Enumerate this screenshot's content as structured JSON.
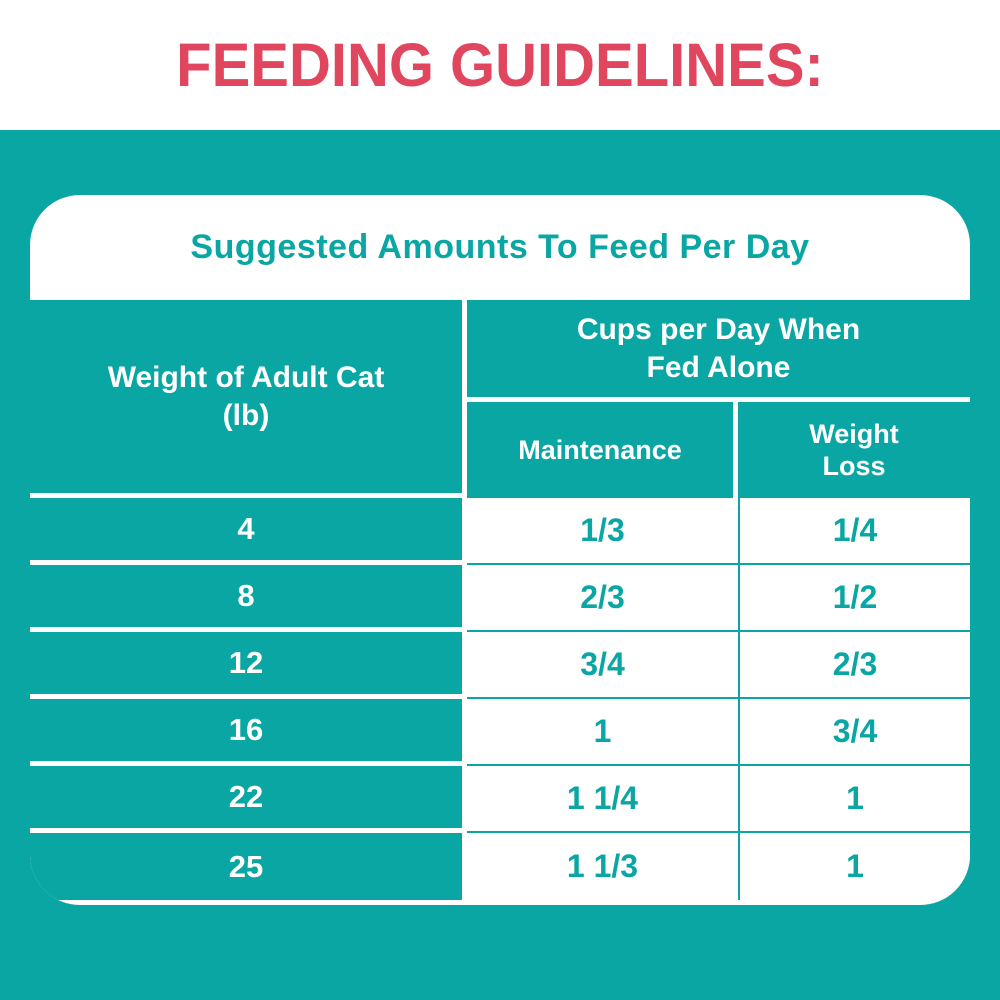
{
  "heading": {
    "text": "FEEDING GUIDELINES:"
  },
  "card": {
    "title": "Suggested Amounts To Feed Per Day",
    "table": {
      "weight_header": {
        "line1": "Weight of Adult Cat",
        "line2": "(lb)"
      },
      "cups_header": {
        "line1": "Cups per Day When",
        "line2": "Fed Alone"
      },
      "maintenance_header": "Maintenance",
      "weight_loss_header": {
        "line1": "Weight",
        "line2": "Loss"
      },
      "rows": [
        {
          "weight": "4",
          "maintenance": "1/3",
          "weight_loss": "1/4"
        },
        {
          "weight": "8",
          "maintenance": "2/3",
          "weight_loss": "1/2"
        },
        {
          "weight": "12",
          "maintenance": "3/4",
          "weight_loss": "2/3"
        },
        {
          "weight": "16",
          "maintenance": "1",
          "weight_loss": "3/4"
        },
        {
          "weight": "22",
          "maintenance": "1 1/4",
          "weight_loss": "1"
        },
        {
          "weight": "25",
          "maintenance": "1 1/3",
          "weight_loss": "1"
        }
      ]
    }
  },
  "colors": {
    "teal": "#0AA6A4",
    "pink": "#E0475F",
    "background": "#FFFFFF"
  }
}
